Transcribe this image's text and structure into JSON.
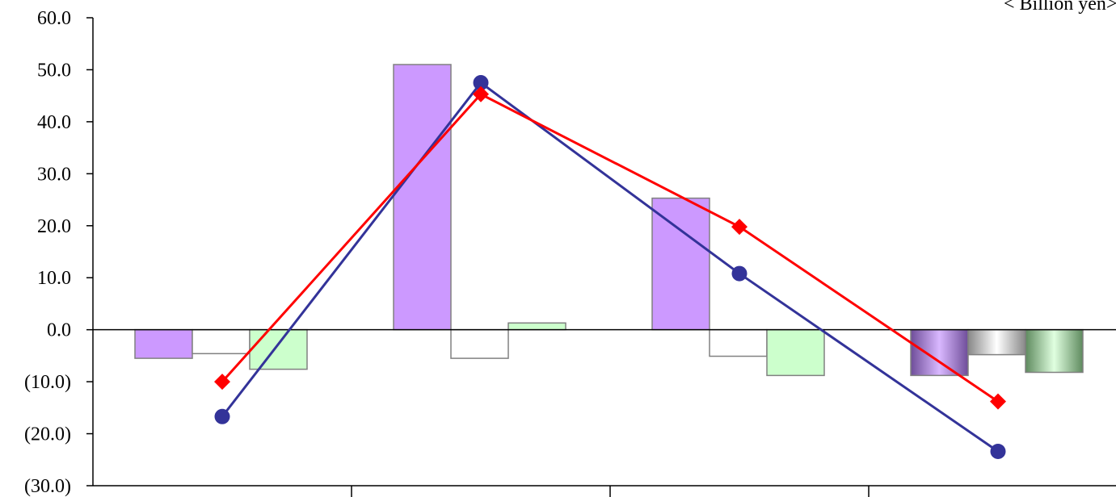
{
  "chart_data": {
    "type": "bar",
    "categories": [
      "",
      "",
      "",
      ""
    ],
    "unit_label": "< Billion yen>",
    "ylim": [
      -30,
      60
    ],
    "y_ticks": [
      60,
      50,
      40,
      30,
      20,
      10,
      0,
      -10,
      -20,
      -30
    ],
    "y_tick_labels": [
      "60.0",
      "50.0",
      "40.0",
      "30.0",
      "20.0",
      "10.0",
      "0.0",
      "(10.0)",
      "(20.0)",
      "(30.0)"
    ],
    "grid": false,
    "bar_series": [
      {
        "name": "",
        "color": "#cc99ff",
        "values": [
          -5.5,
          51.0,
          25.3,
          -8.8
        ]
      },
      {
        "name": "",
        "color": "#ffffff",
        "values": [
          -4.6,
          -5.5,
          -5.1,
          -4.8
        ]
      },
      {
        "name": "",
        "color": "#ccffcc",
        "values": [
          -7.6,
          1.3,
          -8.8,
          -8.2
        ]
      }
    ],
    "line_series": [
      {
        "name": "",
        "color": "#333399",
        "marker": "circle",
        "values": [
          -16.7,
          47.5,
          10.8,
          -23.4
        ]
      },
      {
        "name": "",
        "color": "#ff0000",
        "marker": "diamond",
        "values": [
          -10.0,
          45.3,
          19.8,
          -13.8
        ]
      }
    ],
    "last_group_gradient": true
  }
}
